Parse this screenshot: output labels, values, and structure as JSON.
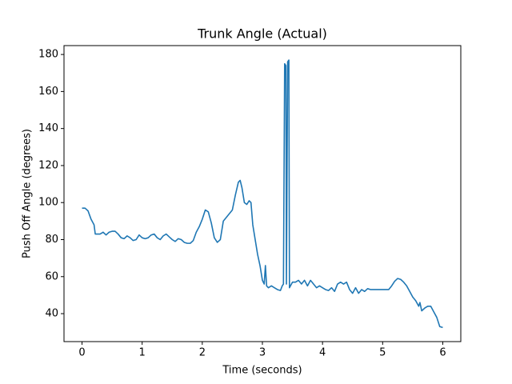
{
  "chart_data": {
    "type": "line",
    "title": "Trunk Angle (Actual)",
    "xlabel": "Time (seconds)",
    "ylabel": "Push Off Angle (degrees)",
    "x": [
      0,
      0.05,
      0.1,
      0.15,
      0.2,
      0.22,
      0.3,
      0.35,
      0.4,
      0.45,
      0.5,
      0.55,
      0.6,
      0.65,
      0.7,
      0.75,
      0.8,
      0.85,
      0.9,
      0.95,
      1.0,
      1.05,
      1.1,
      1.15,
      1.2,
      1.25,
      1.3,
      1.35,
      1.4,
      1.45,
      1.5,
      1.55,
      1.6,
      1.65,
      1.7,
      1.75,
      1.8,
      1.85,
      1.9,
      1.95,
      2.0,
      2.05,
      2.1,
      2.15,
      2.2,
      2.25,
      2.3,
      2.35,
      2.4,
      2.45,
      2.5,
      2.55,
      2.6,
      2.63,
      2.66,
      2.7,
      2.74,
      2.78,
      2.81,
      2.84,
      2.88,
      2.92,
      2.96,
      3.0,
      3.03,
      3.05,
      3.07,
      3.1,
      3.15,
      3.2,
      3.25,
      3.3,
      3.33,
      3.35,
      3.37,
      3.39,
      3.4,
      3.42,
      3.44,
      3.45,
      3.5,
      3.55,
      3.6,
      3.65,
      3.7,
      3.75,
      3.8,
      3.85,
      3.9,
      3.95,
      4.0,
      4.05,
      4.1,
      4.15,
      4.2,
      4.25,
      4.3,
      4.35,
      4.4,
      4.45,
      4.5,
      4.55,
      4.6,
      4.65,
      4.7,
      4.75,
      4.8,
      4.85,
      4.9,
      5.0,
      5.1,
      5.15,
      5.2,
      5.25,
      5.3,
      5.35,
      5.4,
      5.45,
      5.5,
      5.55,
      5.6,
      5.62,
      5.65,
      5.7,
      5.75,
      5.8,
      5.85,
      5.9,
      5.95,
      6.0
    ],
    "values": [
      97,
      97,
      95.5,
      91,
      88,
      83,
      83,
      84,
      82.5,
      84,
      84.5,
      84.5,
      83,
      81,
      80.5,
      82,
      81,
      79.5,
      80,
      82.5,
      81,
      80.5,
      81,
      82.5,
      83,
      81,
      80,
      82,
      83,
      81.5,
      80,
      79,
      80.5,
      80,
      78.5,
      78,
      78,
      79.5,
      84,
      87,
      91,
      96,
      95,
      89,
      81,
      78.5,
      80,
      90,
      92,
      94,
      96,
      104,
      111,
      112,
      108,
      100,
      99,
      101,
      100,
      88,
      80,
      72,
      66,
      58,
      56,
      66,
      55,
      54,
      55,
      54,
      53,
      52.5,
      55,
      56,
      175,
      174,
      56,
      176,
      177,
      54,
      57,
      57,
      58,
      56,
      58,
      55,
      58,
      56,
      54,
      55,
      54,
      53,
      52.5,
      54,
      52,
      56,
      57,
      56,
      57,
      53,
      51,
      54,
      51,
      53,
      52,
      53.5,
      53,
      53,
      53,
      53,
      53,
      55,
      57.5,
      59,
      58.5,
      57,
      55,
      52,
      49,
      47,
      44,
      46,
      41.5,
      43,
      44,
      44,
      41,
      38,
      33,
      32.5
    ],
    "color": "#1f77b4",
    "xlim": [
      -0.3,
      6.3
    ],
    "ylim": [
      24.9,
      184.8
    ],
    "xticks": [
      0,
      1,
      2,
      3,
      4,
      5,
      6
    ],
    "yticks": [
      40,
      60,
      80,
      100,
      120,
      140,
      160,
      180
    ],
    "grid": false
  }
}
